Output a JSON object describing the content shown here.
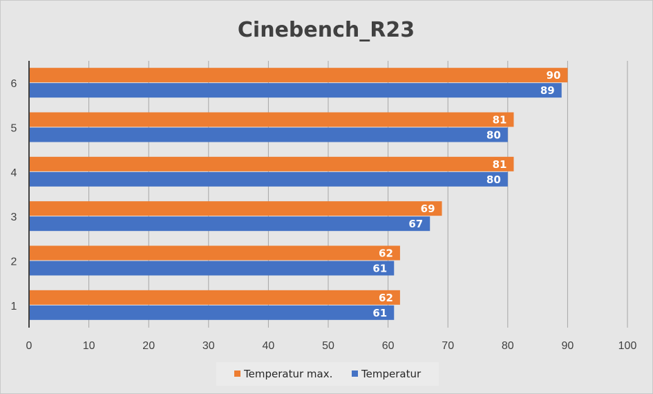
{
  "chart_data": {
    "type": "bar",
    "orientation": "horizontal",
    "title": "Cinebench_R23",
    "categories": [
      "1",
      "2",
      "3",
      "4",
      "5",
      "6"
    ],
    "series": [
      {
        "name": "Temperatur max.",
        "color": "#ed7d31",
        "values": [
          62,
          62,
          69,
          81,
          81,
          90
        ]
      },
      {
        "name": "Temperatur",
        "color": "#4472c4",
        "values": [
          61,
          61,
          67,
          80,
          80,
          89
        ]
      }
    ],
    "xlim": [
      0,
      100
    ],
    "x_ticks": [
      0,
      10,
      20,
      30,
      40,
      50,
      60,
      70,
      80,
      90,
      100
    ],
    "gridlines": true,
    "legend_position": "bottom",
    "data_labels": true
  }
}
